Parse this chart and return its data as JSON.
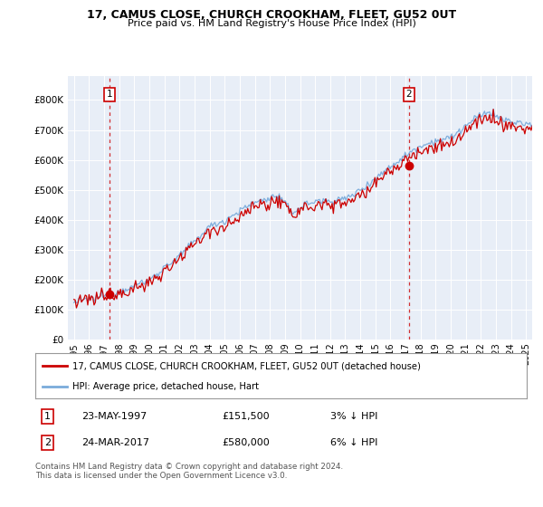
{
  "title1": "17, CAMUS CLOSE, CHURCH CROOKHAM, FLEET, GU52 0UT",
  "title2": "Price paid vs. HM Land Registry's House Price Index (HPI)",
  "legend_label1": "17, CAMUS CLOSE, CHURCH CROOKHAM, FLEET, GU52 0UT (detached house)",
  "legend_label2": "HPI: Average price, detached house, Hart",
  "annotation1_date": "23-MAY-1997",
  "annotation1_price": "£151,500",
  "annotation1_pct": "3% ↓ HPI",
  "annotation2_date": "24-MAR-2017",
  "annotation2_price": "£580,000",
  "annotation2_pct": "6% ↓ HPI",
  "footer": "Contains HM Land Registry data © Crown copyright and database right 2024.\nThis data is licensed under the Open Government Licence v3.0.",
  "bg_color": "#e8eef7",
  "line1_color": "#cc0000",
  "line2_color": "#7aabdb",
  "vline_color": "#cc0000",
  "ylim": [
    0,
    880000
  ],
  "yticks": [
    0,
    100000,
    200000,
    300000,
    400000,
    500000,
    600000,
    700000,
    800000
  ],
  "xlim_start": 1994.6,
  "xlim_end": 2025.4,
  "sale1_x": 1997.37,
  "sale1_y": 151500,
  "sale2_x": 2017.21,
  "sale2_y": 580000
}
